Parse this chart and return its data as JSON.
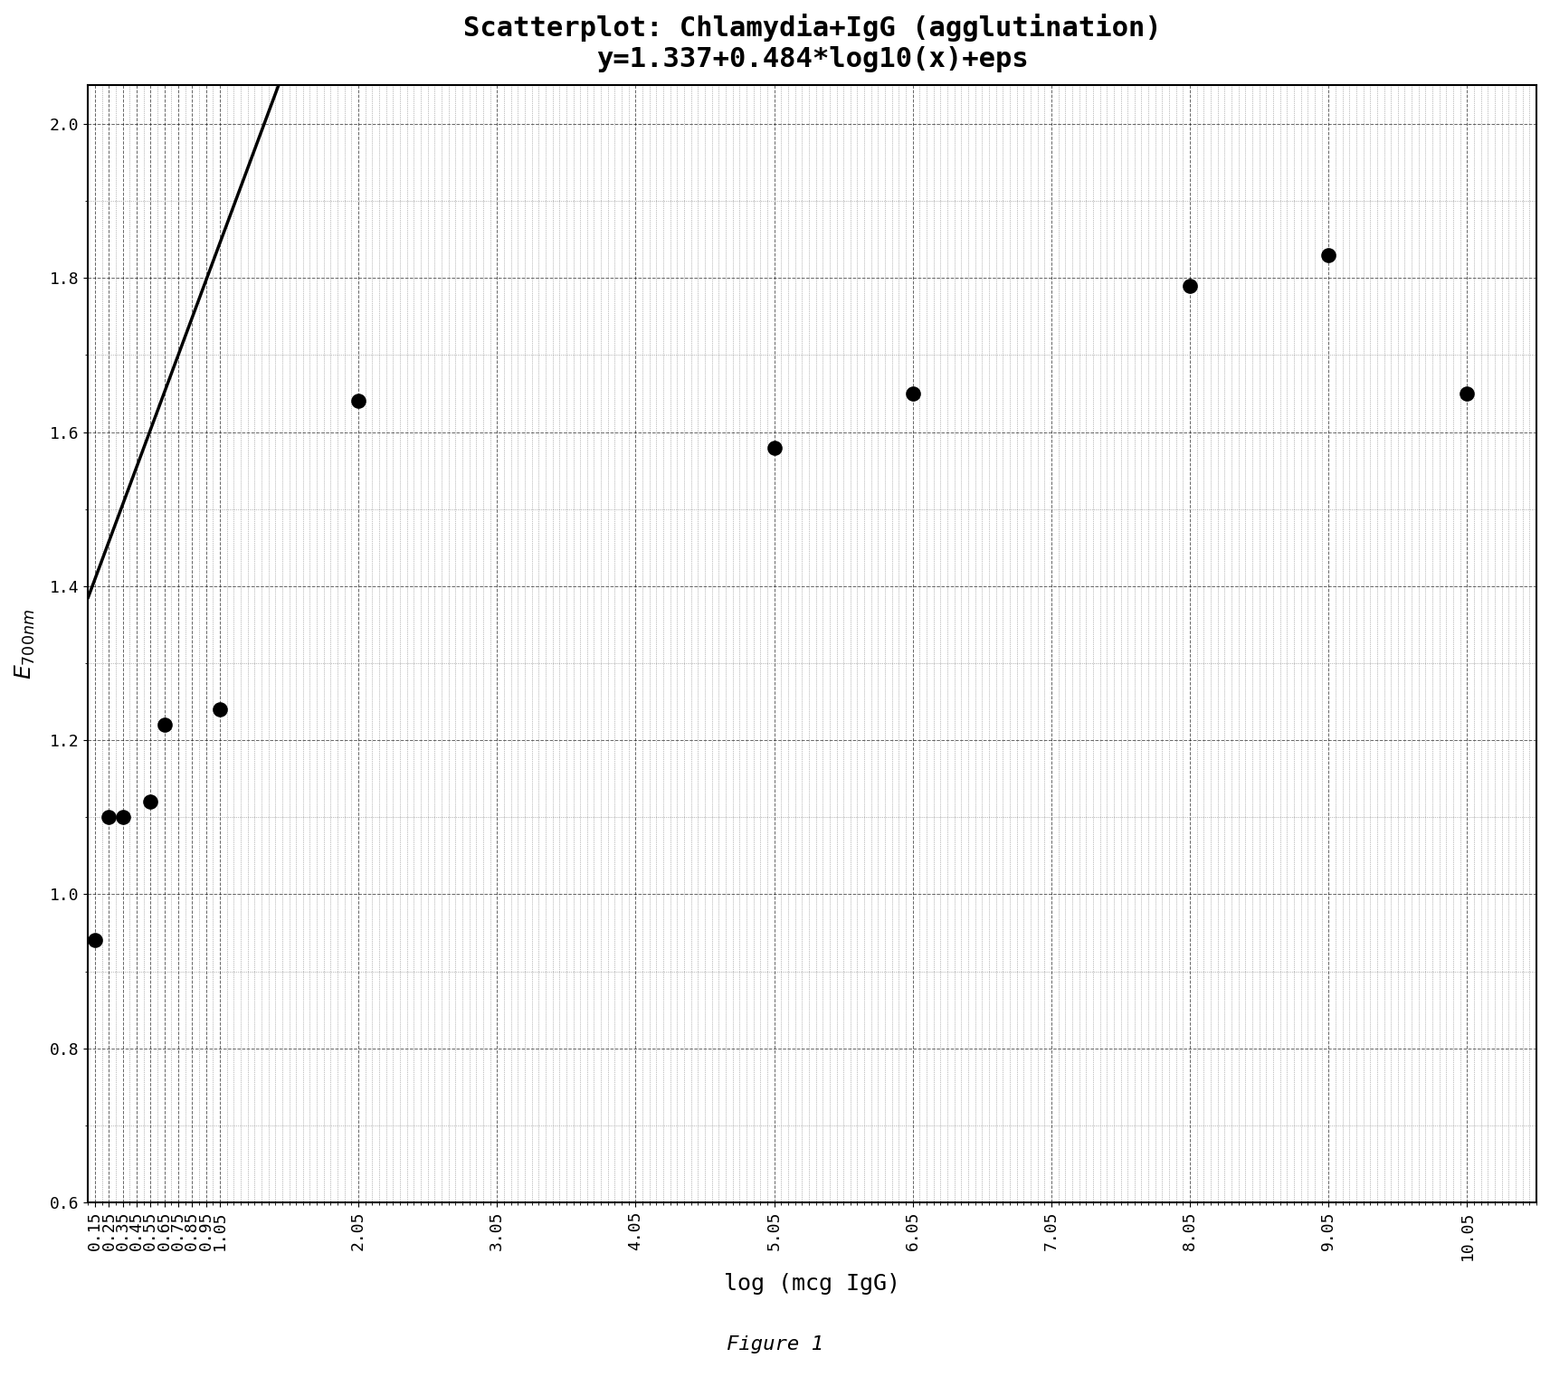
{
  "title_line1": "Scatterplot: Chlamydia+IgG (agglutination)",
  "title_line2": "y=1.337+0.484*log10(x)+eps",
  "xlabel": "log (mcg IgG)",
  "ylabel": "E_{700nm}",
  "intercept": 1.337,
  "slope": 0.484,
  "xtick_positions": [
    0.15,
    0.25,
    0.35,
    0.45,
    0.55,
    0.65,
    0.75,
    0.85,
    0.95,
    1.05,
    2.05,
    3.05,
    4.05,
    5.05,
    6.05,
    7.05,
    8.05,
    9.05,
    10.05
  ],
  "xtick_labels": [
    "0.15",
    "0.25",
    "0.35",
    "0.45",
    "0.55",
    "0.65",
    "0.75",
    "0.85",
    "0.95",
    "1.05",
    "2.05",
    "3.05",
    "4.05",
    "5.05",
    "6.05",
    "7.05",
    "8.05",
    "9.05",
    "10.05"
  ],
  "ytick_positions": [
    0.6,
    0.8,
    1.0,
    1.2,
    1.4,
    1.6,
    1.8,
    2.0
  ],
  "ytick_labels": [
    "0.6",
    "0.8",
    "1.0",
    "1.2",
    "1.4",
    "1.6",
    "1.8",
    "2.0"
  ],
  "xlim": [
    0.1,
    10.55
  ],
  "ylim": [
    0.6,
    2.05
  ],
  "dot_color": "#000000",
  "line_color": "#000000",
  "background_color": "#ffffff",
  "data_points_x": [
    0.15,
    0.25,
    0.35,
    0.55,
    0.65,
    1.05,
    2.05,
    5.05,
    6.05,
    8.05,
    9.05,
    10.05
  ],
  "data_points_y": [
    0.94,
    1.1,
    1.1,
    1.12,
    1.22,
    1.24,
    1.64,
    1.58,
    1.65,
    1.79,
    1.83,
    1.65
  ],
  "fig_caption": "Figure 1",
  "title_fontsize": 22,
  "subtitle_fontsize": 18,
  "tick_fontsize": 13,
  "label_fontsize": 18,
  "caption_fontsize": 16,
  "dot_size": 120,
  "line_width": 2.5
}
